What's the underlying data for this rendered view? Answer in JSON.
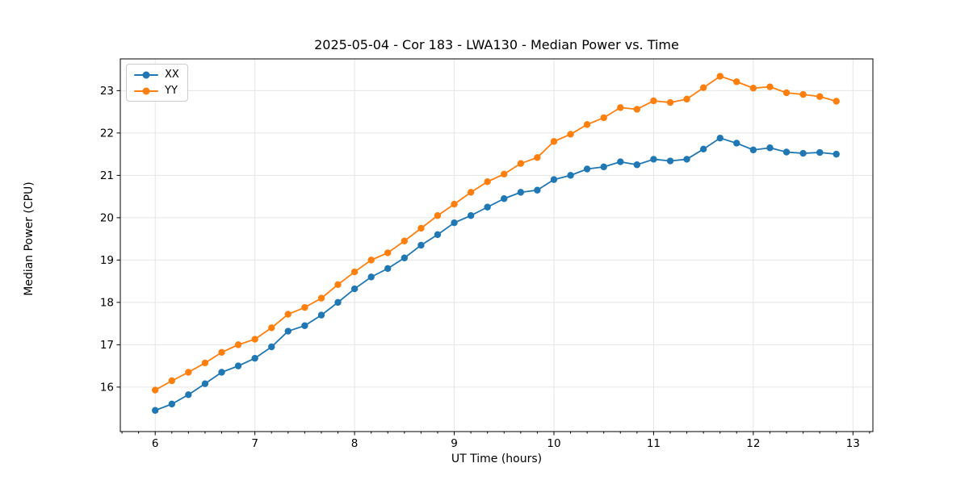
{
  "chart_data": {
    "type": "line",
    "title": "2025-05-04 - Cor 183 - LWA130 - Median Power vs. Time",
    "xlabel": "UT Time (hours)",
    "ylabel": "Median Power (CPU)",
    "xlim": [
      5.65,
      13.2
    ],
    "ylim": [
      14.95,
      23.75
    ],
    "xticks": [
      6,
      7,
      8,
      9,
      10,
      11,
      12,
      13
    ],
    "yticks": [
      16,
      17,
      18,
      19,
      20,
      21,
      22,
      23
    ],
    "x_minor_tick_step": 0.166667,
    "grid": true,
    "grid_color": "#e5e5e5",
    "spine_color": "#000000",
    "background_color": "#ffffff",
    "legend_position": "upper-left",
    "x": [
      6.0,
      6.167,
      6.333,
      6.5,
      6.667,
      6.833,
      7.0,
      7.167,
      7.333,
      7.5,
      7.667,
      7.833,
      8.0,
      8.167,
      8.333,
      8.5,
      8.667,
      8.833,
      9.0,
      9.167,
      9.333,
      9.5,
      9.667,
      9.833,
      10.0,
      10.167,
      10.333,
      10.5,
      10.667,
      10.833,
      11.0,
      11.167,
      11.333,
      11.5,
      11.667,
      11.833,
      12.0,
      12.167,
      12.333,
      12.5,
      12.667,
      12.833
    ],
    "series": [
      {
        "name": "XX",
        "color": "#1f77b4",
        "marker": "circle",
        "values": [
          15.45,
          15.6,
          15.82,
          16.08,
          16.35,
          16.5,
          16.68,
          16.95,
          17.32,
          17.45,
          17.7,
          18.0,
          18.32,
          18.6,
          18.8,
          19.05,
          19.35,
          19.6,
          19.88,
          20.05,
          20.25,
          20.45,
          20.6,
          20.65,
          20.9,
          21.0,
          21.15,
          21.2,
          21.32,
          21.25,
          21.38,
          21.34,
          21.38,
          21.62,
          21.88,
          21.76,
          21.6,
          21.65,
          21.55,
          21.52,
          21.54,
          21.5
        ]
      },
      {
        "name": "YY",
        "color": "#ff7f0e",
        "marker": "circle",
        "values": [
          15.93,
          16.15,
          16.35,
          16.57,
          16.82,
          17.0,
          17.13,
          17.4,
          17.72,
          17.88,
          18.1,
          18.42,
          18.72,
          19.0,
          19.17,
          19.45,
          19.75,
          20.05,
          20.32,
          20.6,
          20.85,
          21.03,
          21.28,
          21.42,
          21.8,
          21.97,
          22.2,
          22.36,
          22.6,
          22.56,
          22.76,
          22.72,
          22.8,
          23.07,
          23.34,
          23.21,
          23.06,
          23.09,
          22.95,
          22.91,
          22.86,
          22.75
        ]
      }
    ]
  }
}
